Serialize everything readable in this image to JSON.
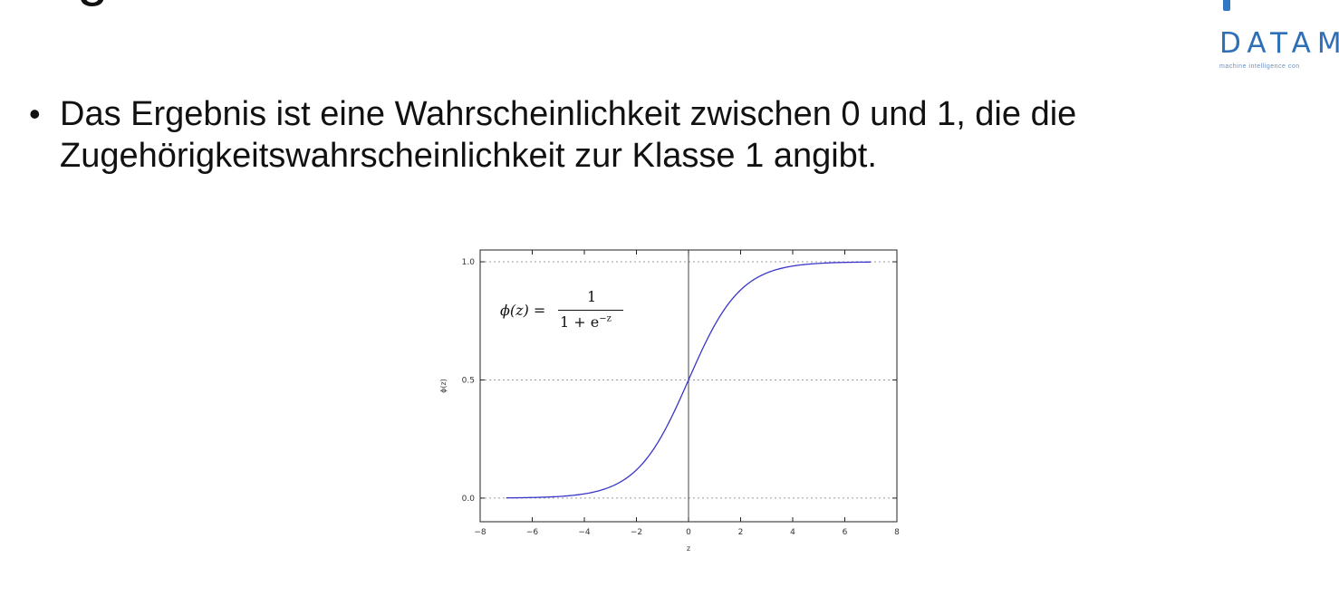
{
  "slide": {
    "title": "Sigmoid-Funktion",
    "bullet": "Das Ergebnis ist eine Wahrscheinlichkeit zwischen 0 und 1, die die Zugehörigkeitswahrscheinlichkeit zur Klasse 1 angibt."
  },
  "logo": {
    "text": "DATAM",
    "tagline": "machine intelligence con"
  },
  "formula": {
    "lhs": "ϕ(z) =",
    "numerator": "1",
    "denominator_base": "1 + e",
    "denominator_exp": "−z"
  },
  "chart_data": {
    "type": "line",
    "xlabel": "z",
    "ylabel": "ϕ(z)",
    "xlim": [
      -8,
      8
    ],
    "ylim": [
      -0.1,
      1.05
    ],
    "xticks": [
      -8,
      -6,
      -4,
      -2,
      0,
      2,
      4,
      6,
      8
    ],
    "xtick_labels": [
      "−8",
      "−6",
      "−4",
      "−2",
      "0",
      "2",
      "4",
      "6",
      "8"
    ],
    "yticks": [
      0.0,
      0.5,
      1.0
    ],
    "ytick_labels": [
      "0.0",
      "0.5",
      "1.0"
    ],
    "grid": "horizontal dotted at 0.0, 0.5, 1.0",
    "vertical_line_at_x": 0,
    "line_color": "#3a35c8",
    "series": [
      {
        "x": [
          -7,
          -6,
          -5,
          -4,
          -3,
          -2,
          -1,
          0,
          1,
          2,
          3,
          4,
          5,
          6,
          7
        ],
        "values": [
          0.001,
          0.002,
          0.007,
          0.018,
          0.047,
          0.119,
          0.269,
          0.5,
          0.731,
          0.881,
          0.953,
          0.982,
          0.993,
          0.998,
          0.999
        ]
      }
    ]
  }
}
